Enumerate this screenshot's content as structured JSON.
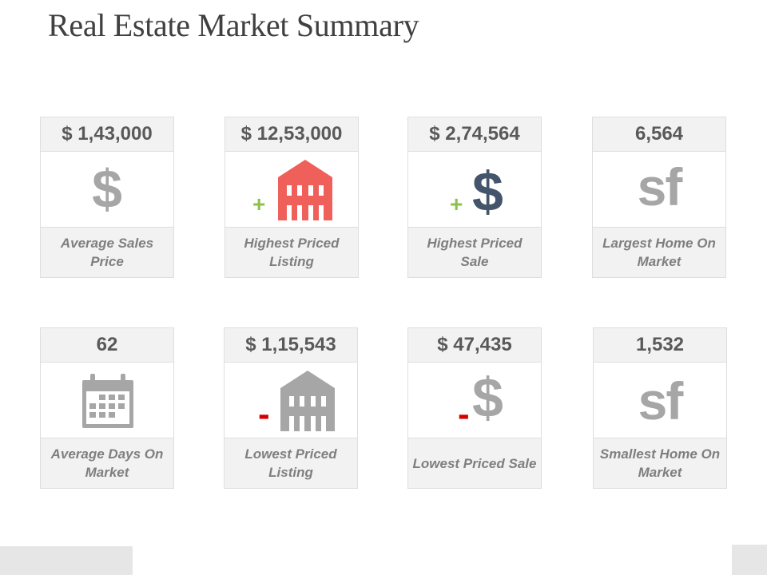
{
  "title": "Real Estate Market Summary",
  "colors": {
    "accent_red": "#f0605a",
    "dark_navy": "#44546a",
    "icon_grey": "#a6a6a6",
    "plus_green": "#8bc34a",
    "minus_red": "#d40000"
  },
  "cards": [
    {
      "value": "$ 1,43,000",
      "label": "Average Sales Price",
      "icon": "dollar-icon",
      "glyph": "$"
    },
    {
      "value": "$ 12,53,000",
      "label": "Highest Priced Listing",
      "icon": "house-icon",
      "sign": "+"
    },
    {
      "value": "$ 2,74,564",
      "label": "Highest Priced Sale",
      "icon": "dollar-icon",
      "glyph": "$",
      "sign": "+"
    },
    {
      "value": "6,564",
      "label": "Largest Home On Market",
      "icon": "sf-icon",
      "glyph": "sf"
    },
    {
      "value": "62",
      "label": "Average Days On Market",
      "icon": "calendar-icon"
    },
    {
      "value": "$ 1,15,543",
      "label": "Lowest Priced Listing",
      "icon": "house-icon",
      "sign": "-"
    },
    {
      "value": "$ 47,435",
      "label": "Lowest Priced Sale",
      "icon": "dollar-icon",
      "glyph": "$",
      "sign": "-"
    },
    {
      "value": "1,532",
      "label": "Smallest Home On Market",
      "icon": "sf-icon",
      "glyph": "sf"
    }
  ]
}
